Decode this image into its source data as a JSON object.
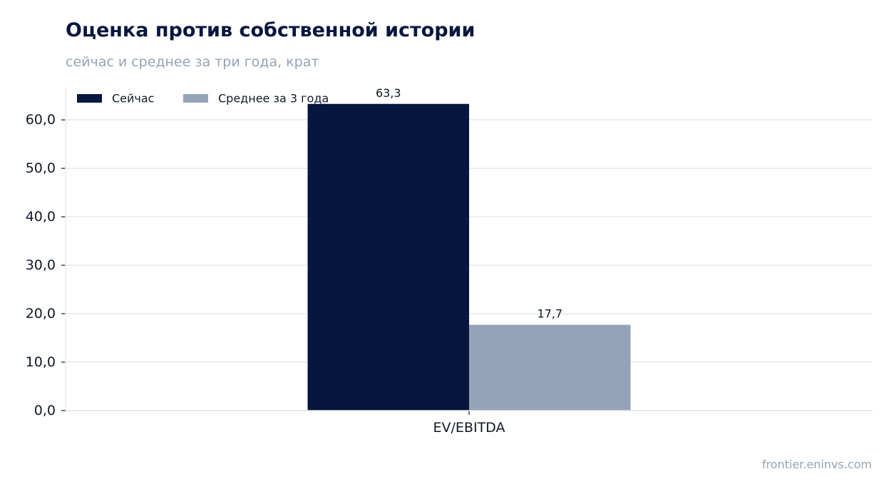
{
  "header": {
    "title": "Оценка против собственной истории",
    "subtitle": "сейчас и среднее за три года, крат"
  },
  "footer": {
    "source": "frontier.eninvs.com"
  },
  "chart_data": {
    "type": "bar",
    "categories": [
      "EV/EBITDA"
    ],
    "series": [
      {
        "name": "Сейчас",
        "values": [
          63.3
        ],
        "labels": [
          "63,3"
        ],
        "color": "#06163f"
      },
      {
        "name": "Среднее за 3 года",
        "values": [
          17.7
        ],
        "labels": [
          "17,7"
        ],
        "color": "#94a3b8"
      }
    ],
    "yticks": [
      0,
      10,
      20,
      30,
      40,
      50,
      60
    ],
    "ytick_labels": [
      "0,0",
      "10,0",
      "20,0",
      "30,0",
      "40,0",
      "50,0",
      "60,0"
    ],
    "ylim": [
      0,
      66.5
    ],
    "grid": true,
    "legend_position": "top-left",
    "colors": {
      "grid": "#e5e7eb",
      "axis": "#e5e7eb",
      "tick_text": "#111827"
    }
  }
}
